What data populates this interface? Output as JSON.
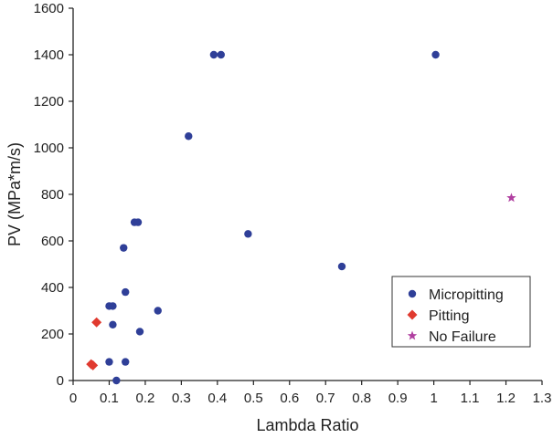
{
  "chart_data": {
    "type": "scatter",
    "xlabel": "Lambda Ratio",
    "ylabel": "PV (MPa*m/s)",
    "xlim": [
      0,
      1.3
    ],
    "ylim": [
      0,
      1600
    ],
    "xticks": [
      0,
      0.1,
      0.2,
      0.3,
      0.4,
      0.5,
      0.6,
      0.7,
      0.8,
      0.9,
      1,
      1.1,
      1.2,
      1.3
    ],
    "xtick_labels": [
      "0",
      "0.1",
      "0.2",
      "0.3",
      "0.4",
      "0.5",
      "0.6",
      "0.7",
      "0.8",
      "0.9",
      "1",
      "1.1",
      "1.2",
      "1.3"
    ],
    "yticks": [
      0,
      200,
      400,
      600,
      800,
      1000,
      1200,
      1400,
      1600
    ],
    "ytick_labels": [
      "0",
      "200",
      "400",
      "600",
      "800",
      "1000",
      "1200",
      "1400",
      "1600"
    ],
    "grid": false,
    "legend_position": "bottom-right",
    "series": [
      {
        "name": "Micropitting",
        "marker": "circle",
        "color": "#2f3f98",
        "points": [
          [
            0.12,
            0
          ],
          [
            0.1,
            80
          ],
          [
            0.145,
            80
          ],
          [
            0.11,
            240
          ],
          [
            0.185,
            210
          ],
          [
            0.1,
            320
          ],
          [
            0.11,
            320
          ],
          [
            0.235,
            300
          ],
          [
            0.145,
            380
          ],
          [
            0.14,
            570
          ],
          [
            0.17,
            680
          ],
          [
            0.18,
            680
          ],
          [
            0.485,
            630
          ],
          [
            0.745,
            490
          ],
          [
            0.32,
            1050
          ],
          [
            0.39,
            1400
          ],
          [
            0.41,
            1400
          ],
          [
            1.005,
            1400
          ]
        ]
      },
      {
        "name": "Pitting",
        "marker": "diamond",
        "color": "#e03a2f",
        "points": [
          [
            0.05,
            70
          ],
          [
            0.055,
            65
          ],
          [
            0.065,
            250
          ]
        ]
      },
      {
        "name": "No Failure",
        "marker": "star",
        "color": "#b03fa0",
        "points": [
          [
            1.215,
            785
          ]
        ]
      }
    ]
  }
}
